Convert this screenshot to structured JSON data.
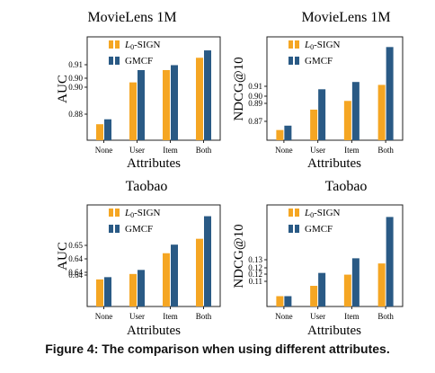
{
  "caption": "Figure 4: The comparison when using different attributes.",
  "colors": {
    "l0_sign": "#f5a623",
    "gmcf": "#2a5a85"
  },
  "chart_data": [
    {
      "type": "bar",
      "title": "MovieLens 1M",
      "xlabel": "Attributes",
      "ylabel": "AUC",
      "categories": [
        "None",
        "User",
        "Item",
        "Both"
      ],
      "yticks": [
        "0.91",
        "0.90",
        "0.90",
        "0.88"
      ],
      "ylim": [
        0.876,
        0.918
      ],
      "legend_placement": "top-right",
      "series": [
        {
          "name": "L0-SIGN",
          "legend_prefix": "L",
          "legend_sub": "0",
          "legend_suffix": "-SIGN",
          "values": [
            0.8825,
            0.8995,
            0.9045,
            0.9095
          ]
        },
        {
          "name": "GMCF",
          "values": [
            0.8845,
            0.9045,
            0.9065,
            0.9125
          ]
        }
      ]
    },
    {
      "type": "bar",
      "title": "MovieLens 1M",
      "xlabel": "Attributes",
      "ylabel": "NDCG@10",
      "categories": [
        "None",
        "User",
        "Item",
        "Both"
      ],
      "yticks": [
        "0.91",
        "0.90",
        "0.89",
        "0.87"
      ],
      "ylim": [
        0.864,
        0.935
      ],
      "legend_placement": "top-right",
      "series": [
        {
          "name": "L0-SIGN",
          "legend_prefix": "L",
          "legend_sub": "0",
          "legend_suffix": "-SIGN",
          "values": [
            0.871,
            0.885,
            0.891,
            0.902
          ]
        },
        {
          "name": "GMCF",
          "values": [
            0.874,
            0.899,
            0.904,
            0.928
          ]
        }
      ]
    },
    {
      "type": "bar",
      "title": "Taobao",
      "xlabel": "Attributes",
      "ylabel": "AUC",
      "categories": [
        "None",
        "User",
        "Item",
        "Both"
      ],
      "yticks": [
        "0.65",
        "0.64",
        "0.64",
        "0.64"
      ],
      "ylim": [
        0.636,
        0.6585
      ],
      "legend_placement": "top-right",
      "series": [
        {
          "name": "L0-SIGN",
          "legend_prefix": "L",
          "legend_sub": "0",
          "legend_suffix": "-SIGN",
          "values": [
            0.642,
            0.6432,
            0.6478,
            0.651
          ]
        },
        {
          "name": "GMCF",
          "values": [
            0.6425,
            0.6441,
            0.6497,
            0.656
          ]
        }
      ]
    },
    {
      "type": "bar",
      "title": "Taobao",
      "xlabel": "Attributes",
      "ylabel": "NDCG@10",
      "categories": [
        "None",
        "User",
        "Item",
        "Both"
      ],
      "yticks": [
        "0.13",
        "0.12",
        "0.12",
        "0.11"
      ],
      "ylim": [
        0.1045,
        0.1635
      ],
      "legend_placement": "top-right",
      "series": [
        {
          "name": "L0-SIGN",
          "legend_prefix": "L",
          "legend_sub": "0",
          "legend_suffix": "-SIGN",
          "values": [
            0.1105,
            0.1165,
            0.123,
            0.1295
          ]
        },
        {
          "name": "GMCF",
          "values": [
            0.1105,
            0.124,
            0.1325,
            0.1565
          ]
        }
      ]
    }
  ]
}
